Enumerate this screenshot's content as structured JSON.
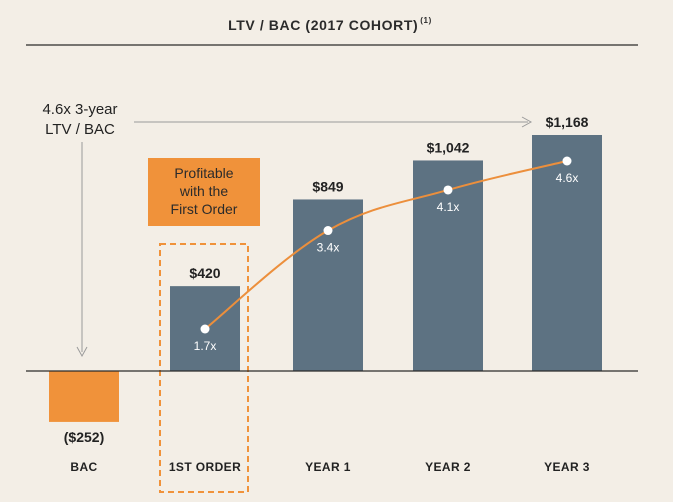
{
  "chart_data": {
    "type": "bar",
    "title": "LTV / BAC (2017 COHORT)",
    "title_footnote": "(1)",
    "categories": [
      "BAC",
      "1ST ORDER",
      "YEAR 1",
      "YEAR 2",
      "YEAR 3"
    ],
    "series": [
      {
        "values": [
          -252,
          420,
          849,
          1042,
          1168
        ]
      }
    ],
    "value_labels": [
      "($252)",
      "$420",
      "$849",
      "$1,042",
      "$1,168"
    ],
    "line_series": {
      "categories": [
        "1ST ORDER",
        "YEAR 1",
        "YEAR 2",
        "YEAR 3"
      ],
      "values": [
        1.7,
        3.4,
        4.1,
        4.6
      ],
      "labels": [
        "1.7x",
        "3.4x",
        "4.1x",
        "4.6x"
      ]
    },
    "annotations": {
      "left_arrow_text": [
        "4.6x 3-year",
        "LTV / BAC"
      ],
      "callout": [
        "Profitable",
        "with the",
        "First Order"
      ]
    },
    "ylim": [
      -252,
      1168
    ],
    "grid": false,
    "colors": {
      "bar": "#5d7282",
      "negative_bar": "#f0923a",
      "line": "#ec8f3c",
      "callout_bg": "#f0923a",
      "dashed_box": "#f0923a",
      "arrow": "#9a9a9a",
      "baseline": "#2b2b2b"
    }
  }
}
